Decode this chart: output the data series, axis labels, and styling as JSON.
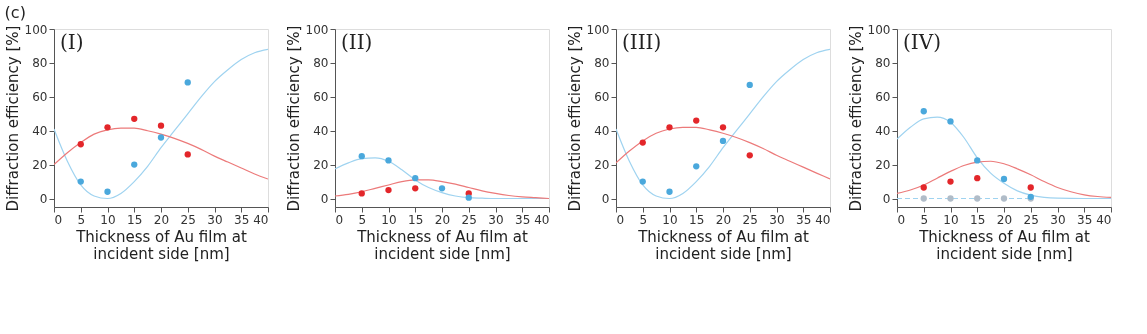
{
  "chart_data": [
    {
      "type": "scatter",
      "title": "(c)",
      "annotations": [
        "(I)"
      ],
      "xlabel": "Thickness of Au film at incident side [nm]",
      "ylabel": "Diffraction efficiency [%]",
      "xlim": [
        0,
        40
      ],
      "ylim": [
        -5,
        100
      ],
      "xticks": [
        0,
        5,
        10,
        15,
        20,
        25,
        30,
        35,
        40
      ],
      "yticks": [
        0,
        20,
        40,
        60,
        80,
        100
      ],
      "grid": false,
      "series": [
        {
          "type": "line",
          "color": "#9fd3f0",
          "x": [
            0,
            2.5,
            5,
            7.5,
            10,
            12.5,
            15,
            17.5,
            20,
            22.5,
            25,
            27.5,
            30,
            32.5,
            35,
            37.5,
            40
          ],
          "values": [
            41,
            22,
            8,
            1.5,
            0,
            3,
            10,
            19,
            30,
            40,
            50,
            60,
            69,
            76,
            82,
            86,
            88
          ]
        },
        {
          "type": "line",
          "color": "#ec7a7a",
          "x": [
            0,
            2.5,
            5,
            7.5,
            10,
            12.5,
            15,
            17.5,
            20,
            22.5,
            25,
            27.5,
            30,
            32.5,
            35,
            37.5,
            40
          ],
          "values": [
            20,
            27,
            33,
            38,
            40.5,
            41.5,
            41.5,
            40,
            38,
            35.5,
            32.5,
            29,
            25,
            21.5,
            18,
            14.5,
            11.5
          ]
        },
        {
          "color": "#4aa8dc",
          "x": [
            5,
            10,
            15,
            20,
            25
          ],
          "values": [
            10,
            4,
            20,
            36,
            68.5
          ]
        },
        {
          "color": "#e3262a",
          "x": [
            5,
            10,
            15,
            20,
            25
          ],
          "values": [
            32,
            42,
            47,
            43,
            26
          ]
        }
      ]
    },
    {
      "type": "scatter",
      "annotations": [
        "(II)"
      ],
      "xlabel": "Thickness of Au film at incident side [nm]",
      "ylabel": "Diffraction efficiency [%]",
      "xlim": [
        0,
        40
      ],
      "ylim": [
        -5,
        100
      ],
      "xticks": [
        0,
        5,
        10,
        15,
        20,
        25,
        30,
        35,
        40
      ],
      "yticks": [
        0,
        20,
        40,
        60,
        80,
        100
      ],
      "grid": false,
      "series": [
        {
          "type": "line",
          "color": "#9fd3f0",
          "x": [
            0,
            2.5,
            5,
            7.5,
            10,
            12.5,
            15,
            17.5,
            20,
            22.5,
            25,
            27.5,
            30,
            35,
            40
          ],
          "values": [
            17.5,
            21,
            23.5,
            24,
            22,
            17,
            11,
            6.5,
            3.5,
            1.5,
            0.5,
            0.2,
            0,
            0,
            0
          ]
        },
        {
          "type": "line",
          "color": "#ec7a7a",
          "x": [
            0,
            2.5,
            5,
            7.5,
            10,
            12.5,
            15,
            17.5,
            20,
            22.5,
            25,
            27.5,
            30,
            32.5,
            35,
            37.5,
            40
          ],
          "values": [
            1.5,
            2.5,
            4,
            6,
            8,
            10,
            11,
            11,
            10,
            8.5,
            6.5,
            4.5,
            3,
            1.8,
            1,
            0.5,
            0
          ]
        },
        {
          "color": "#e3262a",
          "x": [
            5,
            10,
            15,
            20,
            25
          ],
          "values": [
            3,
            5,
            6,
            null,
            3
          ]
        },
        {
          "color": "#4aa8dc",
          "x": [
            5,
            10,
            15,
            20,
            25
          ],
          "values": [
            25,
            22.5,
            12,
            6,
            0.5
          ]
        }
      ]
    },
    {
      "type": "scatter",
      "annotations": [
        "(III)"
      ],
      "xlabel": "Thickness of Au film at incident side [nm]",
      "ylabel": "Diffraction efficiency [%]",
      "xlim": [
        0,
        40
      ],
      "ylim": [
        -5,
        100
      ],
      "xticks": [
        0,
        5,
        10,
        15,
        20,
        25,
        30,
        35,
        40
      ],
      "yticks": [
        0,
        20,
        40,
        60,
        80,
        100
      ],
      "grid": false,
      "series": [
        {
          "type": "line",
          "color": "#9fd3f0",
          "x": [
            0,
            2.5,
            5,
            7.5,
            10,
            12.5,
            15,
            17.5,
            20,
            22.5,
            25,
            27.5,
            30,
            32.5,
            35,
            37.5,
            40
          ],
          "values": [
            41,
            22,
            8,
            1.5,
            0,
            3,
            10,
            19,
            30,
            40,
            50,
            60,
            69,
            76,
            82,
            86,
            88
          ]
        },
        {
          "type": "line",
          "color": "#ec7a7a",
          "x": [
            0,
            2.5,
            5,
            7.5,
            10,
            12.5,
            15,
            17.5,
            20,
            22.5,
            25,
            27.5,
            30,
            32.5,
            35,
            37.5,
            40
          ],
          "values": [
            21,
            28,
            34,
            38.5,
            41,
            42,
            42,
            40.5,
            38.5,
            36,
            33,
            29.5,
            25.5,
            22,
            18.5,
            15,
            11.5
          ]
        },
        {
          "color": "#4aa8dc",
          "x": [
            5,
            10,
            15,
            20,
            25
          ],
          "values": [
            10,
            4,
            19,
            34,
            67
          ]
        },
        {
          "color": "#e3262a",
          "x": [
            5,
            10,
            15,
            20,
            25
          ],
          "values": [
            33,
            42,
            46,
            42,
            25.5
          ]
        }
      ]
    },
    {
      "type": "scatter",
      "annotations": [
        "(IV)"
      ],
      "xlabel": "Thickness of Au film at incident side [nm]",
      "ylabel": "Diffraction efficiency [%]",
      "xlim": [
        0,
        40
      ],
      "ylim": [
        -5,
        100
      ],
      "xticks": [
        0,
        5,
        10,
        15,
        20,
        25,
        30,
        35,
        40
      ],
      "yticks": [
        0,
        20,
        40,
        60,
        80,
        100
      ],
      "grid": false,
      "series": [
        {
          "type": "line",
          "color": "#9fd3f0",
          "line_style": "dashed",
          "x": [
            0,
            25
          ],
          "values": [
            0,
            0
          ]
        },
        {
          "type": "line",
          "color": "#9fd3f0",
          "x": [
            0,
            2.5,
            5,
            7.5,
            10,
            12.5,
            15,
            17.5,
            20,
            22.5,
            25,
            27.5,
            30,
            35,
            40
          ],
          "values": [
            35,
            42,
            47,
            48,
            45,
            36,
            24,
            15,
            9,
            4.5,
            2,
            0.7,
            0.2,
            0,
            0
          ]
        },
        {
          "type": "line",
          "color": "#ec7a7a",
          "x": [
            0,
            2.5,
            5,
            7.5,
            10,
            12.5,
            15,
            17.5,
            20,
            22.5,
            25,
            27.5,
            30,
            32.5,
            35,
            37.5,
            40
          ],
          "values": [
            3,
            5,
            8,
            12,
            16,
            19.5,
            21.5,
            22,
            20.5,
            17.5,
            14,
            10,
            6.5,
            4,
            2.2,
            1.2,
            0.7
          ]
        },
        {
          "color": "#b0bcc8",
          "x": [
            5,
            10,
            15,
            20,
            25
          ],
          "values": [
            0,
            0,
            0,
            0,
            0
          ]
        },
        {
          "color": "#4aa8dc",
          "x": [
            5,
            10,
            15,
            20,
            25
          ],
          "values": [
            51.5,
            45.5,
            22.5,
            11.5,
            1
          ]
        },
        {
          "color": "#e3262a",
          "x": [
            5,
            10,
            15,
            20,
            25
          ],
          "values": [
            6.5,
            10,
            12,
            null,
            6.5
          ]
        }
      ]
    }
  ]
}
